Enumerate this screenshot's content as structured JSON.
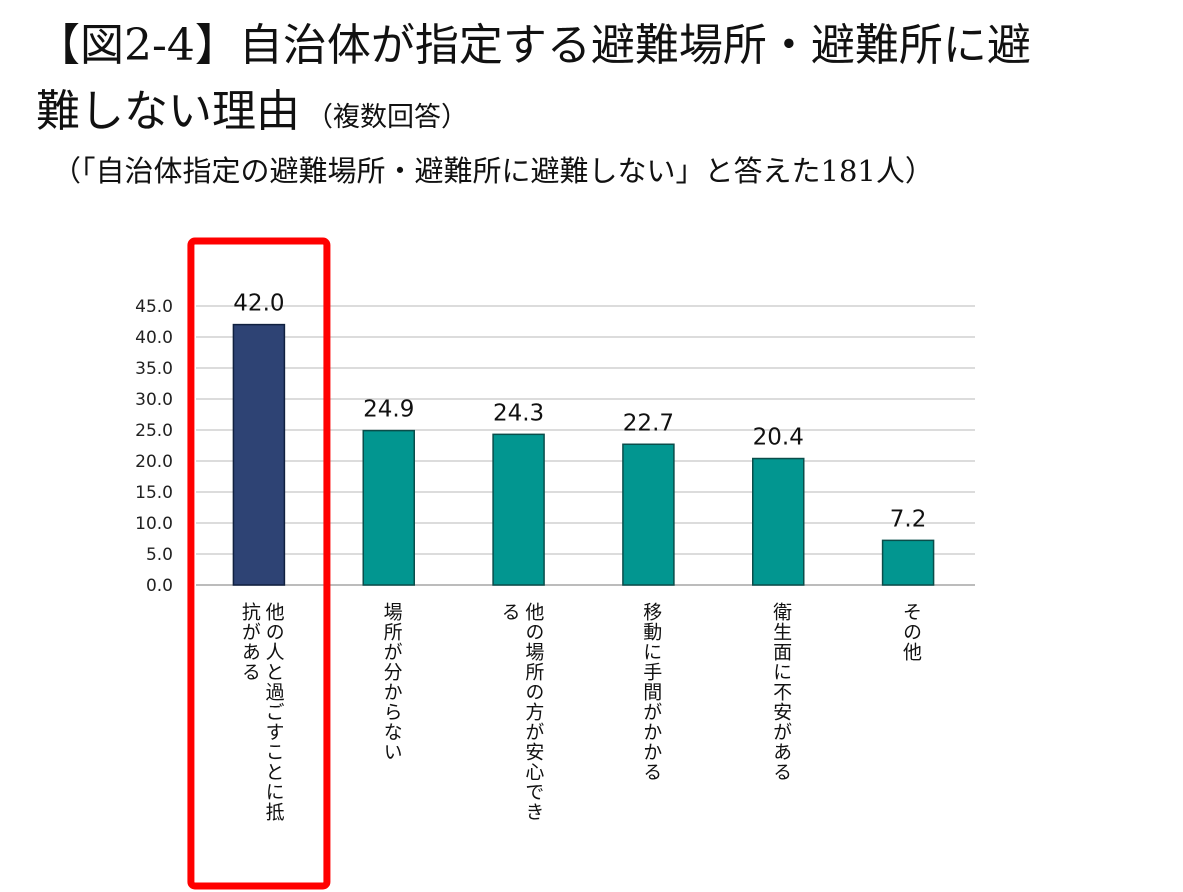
{
  "header": {
    "title_line1": "【図2-4】自治体が指定する避難場所・避難所に避",
    "title_line2": "難しない理由",
    "title_note": "（複数回答）",
    "subtitle": "（「自治体指定の避難場所・避難所に避難しない」と答えた181人）"
  },
  "chart_data": {
    "type": "bar",
    "categories": [
      "他の人と過ごすことに抵抗がある",
      "場所が分からない",
      "他の場所の方が安心できる",
      "移動に手間がかかる",
      "衛生面に不安がある",
      "その他"
    ],
    "values": [
      42.0,
      24.9,
      24.3,
      22.7,
      20.4,
      7.2
    ],
    "value_labels": [
      "42.0",
      "24.9",
      "24.3",
      "22.7",
      "20.4",
      "7.2"
    ],
    "ylim": [
      0,
      45
    ],
    "yticks": [
      "0.0",
      "5.0",
      "10.0",
      "15.0",
      "20.0",
      "25.0",
      "30.0",
      "35.0",
      "40.0",
      "45.0"
    ],
    "grid": true,
    "colors": {
      "highlight": "#2E4374",
      "default": "#029690",
      "highlight_box": "#FF0000"
    },
    "highlight_index": 0
  }
}
